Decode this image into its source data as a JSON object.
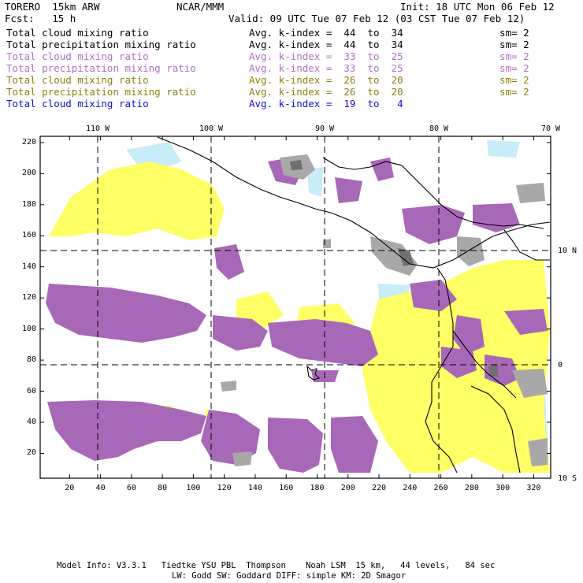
{
  "header": {
    "model": "TORERO  15km ARW",
    "center": "NCAR/MMM",
    "init": "Init: 18 UTC Mon 06 Feb 12",
    "fcst": "Fcst:   15 h",
    "valid": "Valid: 09 UTC Tue 07 Feb 12 (03 CST Tue 07 Feb 12)"
  },
  "legend": [
    {
      "name": "Total cloud mixing ratio",
      "stat": "Avg. k-index =  44  to  34",
      "sm": "sm= 2",
      "color": "#000000"
    },
    {
      "name": "Total precipitation mixing ratio",
      "stat": "Avg. k-index =  44  to  34",
      "sm": "sm= 2",
      "color": "#000000"
    },
    {
      "name": "Total cloud mixing ratio",
      "stat": "Avg. k-index =  33  to  25",
      "sm": "sm= 2",
      "color": "#b070c0"
    },
    {
      "name": "Total precipitation mixing ratio",
      "stat": "Avg. k-index =  33  to  25",
      "sm": "sm= 2",
      "color": "#b070c0"
    },
    {
      "name": "Total cloud mixing ratio",
      "stat": "Avg. k-index =  26  to  20",
      "sm": "sm= 2",
      "color": "#8a7f10"
    },
    {
      "name": "Total precipitation mixing ratio",
      "stat": "Avg. k-index =  26  to  20",
      "sm": "sm= 2",
      "color": "#8a7f10"
    },
    {
      "name": "Total cloud mixing ratio",
      "stat": "Avg. k-index =  19  to   4",
      "sm": "",
      "color": "#1010d0"
    }
  ],
  "top_lon_labels": [
    "110 W",
    "100 W",
    "90 W",
    "80 W",
    "70 W"
  ],
  "right_lat_labels": [
    "10 N",
    "0",
    "10 S"
  ],
  "y_ticks": [
    "220",
    "200",
    "180",
    "160",
    "140",
    "120",
    "100",
    "80",
    "60",
    "40",
    "20"
  ],
  "x_ticks": [
    "20",
    "40",
    "60",
    "80",
    "100",
    "120",
    "140",
    "160",
    "180",
    "200",
    "220",
    "240",
    "260",
    "280",
    "300",
    "320"
  ],
  "footer": {
    "line1": "Model Info: V3.3.1   Tiedtke YSU PBL  Thompson    Noah LSM  15 km,   44 levels,   84 sec",
    "line2": "LW: Godd SW: Goddard DIFF: simple KM: 2D Smagor"
  },
  "colors": {
    "purple": "#a060b0",
    "yellow": "#ffff60",
    "light_blue": "#c8ecf8",
    "gray": "#a8a8a8",
    "dark_gray": "#707070"
  }
}
